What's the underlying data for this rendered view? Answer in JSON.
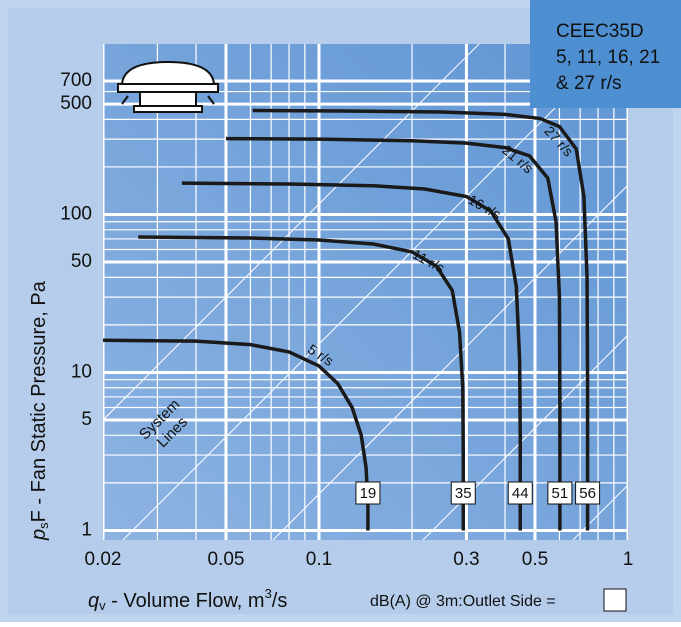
{
  "chart_data": {
    "type": "line",
    "info_box": [
      "CEEC35D",
      "5, 11, 16, 21",
      "& 27 r/s"
    ],
    "xlabel": {
      "symbol": "q",
      "sub": "v",
      "text": " - Volume Flow, m",
      "sup": "3",
      "tail": "/s"
    },
    "ylabel": {
      "symbol": "p",
      "sub": "s",
      "text": "F - Fan Static Pressure, Pa"
    },
    "system_lines_label": [
      "System",
      "Lines"
    ],
    "noise_note": "dB(A) @ 3m:Outlet  Side =",
    "xscale": "log",
    "yscale": "log",
    "xlim": [
      0.02,
      1
    ],
    "ylim": [
      0.87,
      1200
    ],
    "xticks": [
      0.02,
      0.05,
      0.1,
      0.3,
      0.5,
      1
    ],
    "yticks": [
      1,
      5,
      10,
      50,
      100,
      500,
      700
    ],
    "xgrid": [
      0.03,
      0.04,
      0.06,
      0.07,
      0.08,
      0.09,
      0.2,
      0.4,
      0.6,
      0.7,
      0.8,
      0.9
    ],
    "ygrid": [
      2,
      3,
      4,
      6,
      7,
      8,
      9,
      20,
      30,
      40,
      60,
      70,
      80,
      90,
      200,
      300,
      400,
      600
    ],
    "color": "#1a1a1a",
    "series": [
      {
        "name": "5 r/s",
        "noise_db": 19,
        "x": [
          0.02,
          0.04,
          0.06,
          0.08,
          0.1,
          0.115,
          0.128,
          0.137,
          0.142,
          0.144,
          0.144
        ],
        "values": [
          16,
          15.8,
          15,
          13.5,
          11,
          8.5,
          6,
          4,
          2.5,
          1.5,
          1
        ]
      },
      {
        "name": "11 r/s",
        "noise_db": 35,
        "x": [
          0.026,
          0.06,
          0.1,
          0.15,
          0.2,
          0.24,
          0.27,
          0.285,
          0.292,
          0.293,
          0.293
        ],
        "values": [
          72,
          71,
          69,
          65,
          58,
          47,
          33,
          18,
          8,
          3,
          1
        ]
      },
      {
        "name": "16 r/s",
        "noise_db": 44,
        "x": [
          0.036,
          0.08,
          0.15,
          0.22,
          0.3,
          0.36,
          0.41,
          0.435,
          0.446,
          0.448,
          0.448
        ],
        "values": [
          158,
          156,
          152,
          145,
          130,
          105,
          70,
          35,
          12,
          4,
          1
        ]
      },
      {
        "name": "21 r/s",
        "noise_db": 51,
        "x": [
          0.05,
          0.1,
          0.2,
          0.3,
          0.4,
          0.48,
          0.55,
          0.585,
          0.6,
          0.602,
          0.602
        ],
        "values": [
          302,
          300,
          293,
          283,
          265,
          235,
          170,
          90,
          30,
          6,
          1
        ]
      },
      {
        "name": "27 r/s",
        "noise_db": 56,
        "x": [
          0.061,
          0.12,
          0.25,
          0.4,
          0.52,
          0.6,
          0.68,
          0.72,
          0.737,
          0.74,
          0.74
        ],
        "values": [
          455,
          452,
          445,
          430,
          405,
          360,
          260,
          130,
          40,
          8,
          1
        ]
      }
    ]
  }
}
